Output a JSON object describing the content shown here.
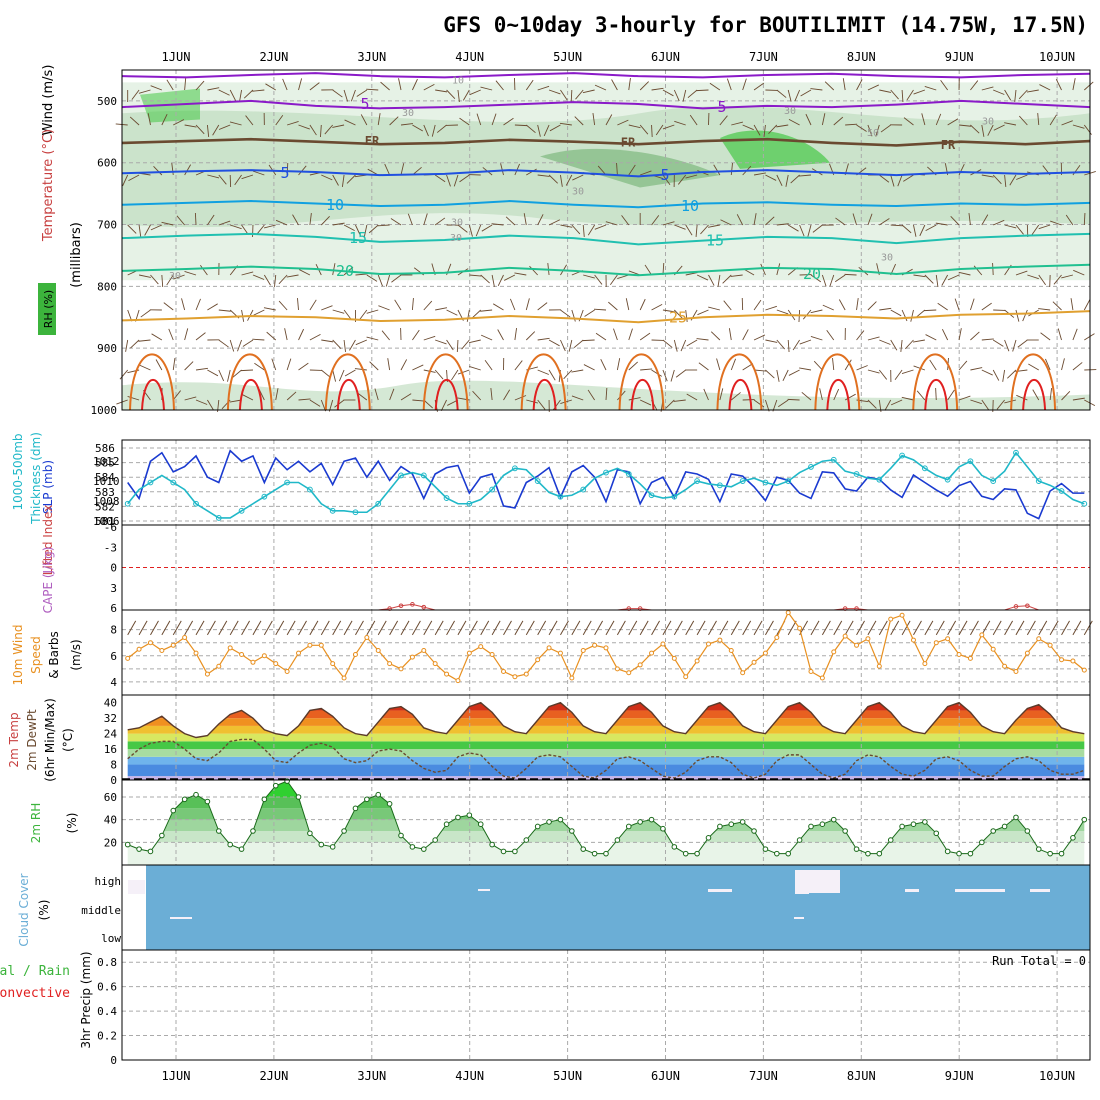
{
  "title": "GFS 0~10day 3-hourly for BOUTILIMIT (14.75W, 17.5N)",
  "x_labels": [
    "1JUN",
    "2JUN",
    "3JUN",
    "4JUN",
    "5JUN",
    "6JUN",
    "7JUN",
    "8JUN",
    "9JUN",
    "10JUN"
  ],
  "colors": {
    "grid": "#aaaaaa",
    "rh_fill1": "#e6f2e6",
    "rh_fill2": "#b9d8b9",
    "rh_fill3": "#7db87d",
    "rh_bright": "#46c846",
    "t_purple": "#8a1ac8",
    "t_blue": "#2050e0",
    "t_lblue": "#10a0e0",
    "t_teal": "#20c0b0",
    "t_green": "#20c090",
    "t_orange": "#e0a030",
    "t_dorange": "#e07020",
    "t_red": "#e02020",
    "slp": "#1a3ad0",
    "thk": "#20b8c8",
    "cape": "#cc4444",
    "wind": "#e89020",
    "barb": "#6a4a30",
    "cloud": "#6baed6",
    "rh2m": "#3cb43c"
  },
  "chart_data": [
    {
      "type": "heatmap",
      "panel": "upper-air",
      "ylabel_segments": [
        "Wind (m/s)",
        "Temperature (°C)",
        "RH (%)",
        "(millibars)"
      ],
      "y_ticks": [
        500,
        600,
        700,
        800,
        900,
        1000
      ],
      "ylim": [
        1000,
        450
      ],
      "isotherm_labels": [
        "5",
        "5",
        "FR",
        "FR",
        "FR",
        "5",
        "5",
        "10",
        "10",
        "15",
        "15",
        "20",
        "20",
        "25"
      ],
      "rh_labels": [
        "10",
        "30",
        "30",
        "30",
        "30",
        "50",
        "30",
        "30",
        "30",
        "30"
      ],
      "isotherms": [
        {
          "label": "5",
          "colorKey": "t_purple",
          "values": [
            510,
            505,
            500,
            508,
            512,
            510,
            506,
            502,
            505,
            512,
            508,
            510,
            506,
            500,
            505,
            510
          ]
        },
        {
          "label": "5",
          "colorKey": "t_purple",
          "values": [
            460,
            462,
            458,
            455,
            460,
            462,
            458,
            455,
            460,
            462,
            458,
            456,
            460,
            462,
            458,
            456
          ]
        },
        {
          "label": "FR",
          "colorKey": "barb",
          "values": [
            568,
            565,
            562,
            566,
            570,
            568,
            563,
            566,
            570,
            565,
            562,
            568,
            572,
            566,
            570,
            565
          ]
        },
        {
          "label": "5",
          "colorKey": "t_blue",
          "values": [
            617,
            614,
            612,
            615,
            620,
            618,
            612,
            616,
            622,
            615,
            612,
            616,
            620,
            615,
            618,
            615
          ]
        },
        {
          "label": "10",
          "colorKey": "t_lblue",
          "values": [
            668,
            665,
            662,
            666,
            670,
            668,
            662,
            668,
            672,
            666,
            664,
            668,
            670,
            666,
            668,
            665
          ]
        },
        {
          "label": "15",
          "colorKey": "t_teal",
          "values": [
            722,
            718,
            715,
            720,
            728,
            725,
            718,
            722,
            732,
            726,
            720,
            722,
            730,
            722,
            718,
            715
          ]
        },
        {
          "label": "20",
          "colorKey": "t_green",
          "values": [
            775,
            772,
            768,
            772,
            780,
            778,
            770,
            775,
            782,
            776,
            770,
            772,
            780,
            772,
            768,
            765
          ]
        },
        {
          "label": "25",
          "colorKey": "t_orange",
          "values": [
            855,
            852,
            848,
            850,
            856,
            854,
            848,
            852,
            858,
            850,
            846,
            848,
            852,
            846,
            844,
            840
          ]
        }
      ]
    },
    {
      "type": "line",
      "panel": "slp-thickness",
      "ylabel_left": [
        "1000-500mb",
        "Thickness (dm)"
      ],
      "ylabel_right": "SLP (mb)",
      "left_ticks": [
        "586",
        "585",
        "584",
        "583",
        "582",
        "581"
      ],
      "right_ticks": [
        "1012",
        "1010",
        "1008",
        "1006"
      ],
      "series": [
        {
          "name": "SLP (mb)",
          "colorKey": "slp",
          "ylim": [
            1006,
            1014
          ],
          "values": [
            1010,
            1008.5,
            1012,
            1012.8,
            1011,
            1011.5,
            1012.5,
            1010.5,
            1010,
            1013,
            1012,
            1012.5,
            1010,
            1012.3,
            1011.2,
            1012,
            1011,
            1011.8,
            1009.8,
            1012,
            1012.3,
            1010.5,
            1012,
            1010.2,
            1011.5,
            1010.8,
            1008.5,
            1010.8,
            1011.4,
            1011.6,
            1009,
            1010.5,
            1010.8,
            1007.8,
            1007.6,
            1010,
            1010.6,
            1011.4,
            1008.6,
            1011,
            1011.6,
            1010.5,
            1008.2,
            1011.2,
            1011,
            1008,
            1010,
            1010.5,
            1008.6,
            1011,
            1010.8,
            1010.3,
            1008.2,
            1010.8,
            1010.6,
            1009.6,
            1008.3,
            1010.5,
            1010.2,
            1009,
            1008.5,
            1011,
            1010.9,
            1009.4,
            1009.2,
            1010.5,
            1010.3,
            1009.3,
            1008.6,
            1010.7,
            1010,
            1009.3,
            1008.7,
            1009.7,
            1010.1,
            1008.7,
            1008.4,
            1009.4,
            1009.3,
            1007.1,
            1006.6,
            1009.2,
            1009.9,
            1009,
            1009
          ]
        },
        {
          "name": "Thickness (dm)",
          "colorKey": "thk",
          "ylim": [
            580.5,
            586.5
          ],
          "values": [
            582,
            583,
            583.5,
            584,
            583.5,
            583,
            582,
            581.5,
            581,
            581,
            581.5,
            582,
            582.5,
            583,
            583.5,
            583.5,
            583,
            582,
            581.5,
            581.5,
            581.4,
            581.4,
            582,
            583,
            584,
            584.2,
            584,
            583.2,
            582.4,
            582,
            582,
            582.3,
            583,
            584,
            584.5,
            584.4,
            583.6,
            582.8,
            582.5,
            582.6,
            583,
            583.8,
            584.2,
            584.5,
            584.1,
            583.4,
            582.6,
            582.4,
            582.5,
            583,
            583.6,
            583.4,
            583.3,
            583.2,
            583.6,
            583.8,
            583.5,
            583.3,
            583.6,
            584.2,
            584.6,
            585,
            585.1,
            584.3,
            584.1,
            583.8,
            583.7,
            584.5,
            585.4,
            585.1,
            584.5,
            584,
            583.7,
            584.6,
            585,
            584,
            583.6,
            584.3,
            585.6,
            584.6,
            583.6,
            583.3,
            582.9,
            582.3,
            582
          ]
        }
      ]
    },
    {
      "type": "line",
      "panel": "lifted-index-cape",
      "ylabel": [
        "Lifted Index",
        "CAPE (J/kg)"
      ],
      "y_ticks": [
        "-6",
        "-3",
        "0",
        "3",
        "6"
      ],
      "ylim": [
        -6,
        6
      ],
      "series": [
        {
          "name": "Lifted Index",
          "colorKey": "cape",
          "values": [
            6,
            6,
            6,
            6,
            6,
            6,
            6,
            6,
            6,
            6,
            6,
            6,
            6,
            6,
            6,
            6,
            6,
            6,
            6,
            6,
            6,
            6,
            6,
            5.8,
            5.4,
            5.2,
            5.6,
            6,
            6,
            6,
            6,
            6,
            6,
            6,
            6,
            6,
            6,
            6,
            6,
            6,
            6,
            6,
            6,
            6,
            5.8,
            5.8,
            6,
            6,
            6,
            6,
            6,
            6,
            6,
            6,
            6,
            6,
            6,
            6,
            6,
            6,
            6,
            6,
            6,
            5.8,
            5.8,
            6,
            6,
            6,
            6,
            6,
            6,
            6,
            6,
            6,
            6,
            6,
            6,
            6,
            5.5,
            5.4,
            6,
            6,
            6,
            6,
            6
          ]
        }
      ]
    },
    {
      "type": "line",
      "panel": "10m-wind",
      "ylabel": [
        "10m Wind",
        "Speed",
        "& Barbs",
        "(m/s)"
      ],
      "y_ticks": [
        "8",
        "6",
        "4"
      ],
      "ylim": [
        3,
        9.5
      ],
      "series": [
        {
          "name": "10m Wind Speed",
          "colorKey": "wind",
          "values": [
            5.8,
            6.5,
            7,
            6.4,
            6.8,
            7.4,
            6.2,
            4.6,
            5.2,
            6.6,
            6.1,
            5.5,
            6,
            5.4,
            4.8,
            6.2,
            6.8,
            6.8,
            5.4,
            4.3,
            6.1,
            7.4,
            6.4,
            5.4,
            5,
            5.9,
            6.4,
            5.4,
            4.6,
            4.1,
            6.2,
            6.7,
            6.1,
            4.8,
            4.4,
            4.6,
            5.7,
            6.6,
            6.2,
            4.3,
            6.4,
            6.8,
            6.6,
            5,
            4.7,
            5.3,
            6.2,
            6.9,
            5.8,
            4.4,
            5.6,
            6.9,
            7.2,
            6.4,
            4.7,
            5.5,
            6.2,
            7.4,
            9.3,
            8.1,
            4.8,
            4.3,
            6.3,
            7.5,
            6.8,
            7.3,
            5.2,
            8.8,
            9.1,
            7.2,
            5.4,
            7,
            7.3,
            6.1,
            5.8,
            7.6,
            6.5,
            5.2,
            4.8,
            6.2,
            7.3,
            6.8,
            5.7,
            5.6,
            4.9
          ]
        }
      ]
    },
    {
      "type": "area",
      "panel": "2m-temp",
      "ylabel": [
        "2m Temp",
        "2m DewPt",
        "(6hr Min/Max)",
        "(°C)"
      ],
      "y_ticks": [
        "40",
        "32",
        "24",
        "16",
        "8",
        "0"
      ],
      "ylim": [
        0,
        44
      ],
      "series": [
        {
          "name": "2m Temp",
          "colorKey": "t_red",
          "values": [
            26,
            27,
            30,
            33,
            28,
            24,
            22,
            23,
            29,
            34,
            36,
            32,
            26,
            24,
            23,
            28,
            36,
            37,
            33,
            27,
            24,
            23,
            30,
            37,
            38,
            34,
            27,
            25,
            24,
            31,
            38,
            40,
            35,
            28,
            25,
            24,
            31,
            38,
            40,
            35,
            28,
            25,
            24,
            31,
            38,
            40,
            35,
            28,
            25,
            24,
            31,
            38,
            40,
            35,
            28,
            25,
            24,
            31,
            38,
            40,
            35,
            28,
            25,
            24,
            31,
            38,
            40,
            35,
            28,
            25,
            24,
            31,
            38,
            40,
            35,
            28,
            25,
            24,
            31,
            37,
            39,
            34,
            27,
            25,
            24
          ]
        },
        {
          "name": "2m DewPt",
          "colorKey": "barb",
          "values": [
            11,
            16,
            19,
            20,
            20,
            16,
            11,
            10,
            14,
            20,
            21,
            21,
            16,
            10,
            9,
            14,
            18,
            19,
            17,
            11,
            9,
            10,
            15,
            16,
            15,
            10,
            6,
            4,
            5,
            12,
            14,
            13,
            7,
            2,
            1,
            6,
            12,
            13,
            12,
            7,
            2,
            1,
            5,
            11,
            12,
            10,
            6,
            2,
            1,
            4,
            10,
            12,
            12,
            9,
            3,
            1,
            3,
            10,
            13,
            13,
            8,
            3,
            1,
            3,
            10,
            13,
            12,
            7,
            3,
            2,
            5,
            11,
            12,
            10,
            5,
            2,
            2,
            7,
            11,
            12,
            10,
            5,
            3,
            3,
            5
          ]
        }
      ]
    },
    {
      "type": "area",
      "panel": "2m-rh",
      "ylabel": [
        "2m RH",
        "(%)"
      ],
      "y_ticks": [
        "60",
        "40",
        "20"
      ],
      "ylim": [
        0,
        75
      ],
      "series": [
        {
          "name": "2m RH",
          "colorKey": "rh2m",
          "values": [
            18,
            14,
            12,
            26,
            48,
            58,
            62,
            56,
            30,
            18,
            14,
            30,
            58,
            70,
            74,
            60,
            28,
            18,
            16,
            30,
            50,
            58,
            62,
            54,
            26,
            16,
            14,
            22,
            36,
            42,
            44,
            36,
            18,
            12,
            12,
            22,
            34,
            38,
            40,
            30,
            14,
            10,
            10,
            22,
            34,
            38,
            40,
            32,
            16,
            10,
            10,
            24,
            34,
            36,
            38,
            30,
            14,
            10,
            10,
            22,
            34,
            36,
            40,
            30,
            14,
            10,
            10,
            22,
            34,
            36,
            38,
            28,
            12,
            10,
            10,
            20,
            30,
            34,
            42,
            30,
            14,
            10,
            10,
            24,
            40
          ]
        }
      ]
    },
    {
      "type": "heatmap",
      "panel": "cloud-cover",
      "ylabel": [
        "Cloud Cover",
        "(%)"
      ],
      "y_ticks": [
        "high",
        "middle",
        "low"
      ]
    },
    {
      "type": "bar",
      "panel": "3hr-precip",
      "ylabel_left": [
        "Total / Rain",
        "Convective"
      ],
      "ylabel": "3hr Precip (mm)",
      "y_ticks": [
        "0.8",
        "0.6",
        "0.4",
        "0.2",
        "0"
      ],
      "ylim": [
        0,
        0.9
      ],
      "annotation": "Run Total = 0",
      "values": []
    }
  ]
}
